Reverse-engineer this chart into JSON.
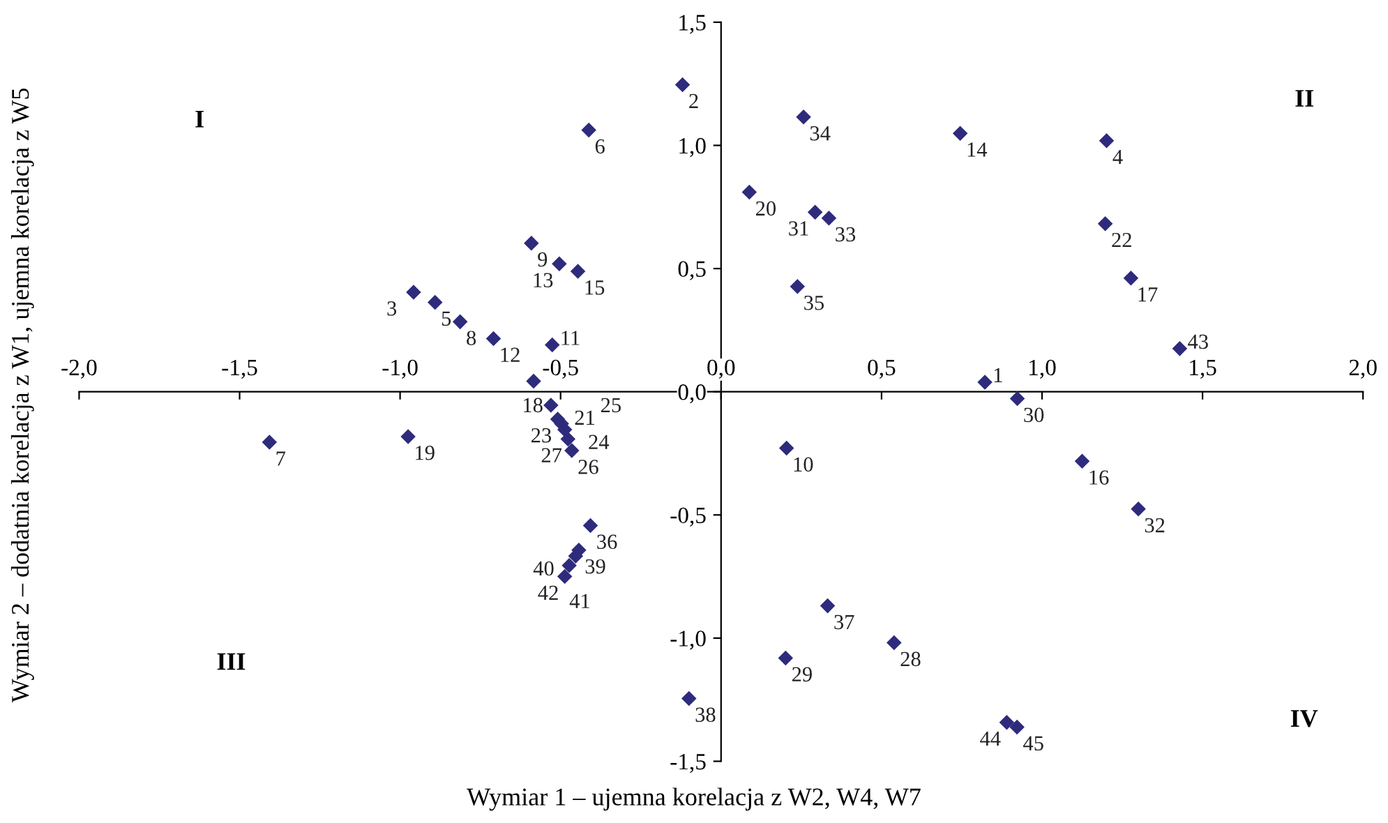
{
  "chart_data": {
    "type": "scatter",
    "xlabel": "Wymiar 1 – ujemna korelacja z W2, W4, W7",
    "ylabel": "Wymiar 2 – dodatnia korelacja z W1, ujemna korelacja z W5",
    "xlim": [
      -2.0,
      2.0
    ],
    "ylim": [
      -1.5,
      1.5
    ],
    "xticks": [
      {
        "value": -2.0,
        "label": "-2,0"
      },
      {
        "value": -1.5,
        "label": "-1,5"
      },
      {
        "value": -1.0,
        "label": "-1,0"
      },
      {
        "value": -0.5,
        "label": "-0,5"
      },
      {
        "value": 0.0,
        "label": "0,0"
      },
      {
        "value": 0.5,
        "label": "0,5"
      },
      {
        "value": 1.0,
        "label": "1,0"
      },
      {
        "value": 1.5,
        "label": "1,5"
      },
      {
        "value": 2.0,
        "label": "2,0"
      }
    ],
    "yticks": [
      {
        "value": -1.5,
        "label": "-1,5"
      },
      {
        "value": -1.0,
        "label": "-1,0"
      },
      {
        "value": -0.5,
        "label": "-0,5"
      },
      {
        "value": 0.0,
        "label": "0,0"
      },
      {
        "value": 0.5,
        "label": "0,5"
      },
      {
        "value": 1.0,
        "label": "1,0"
      },
      {
        "value": 1.5,
        "label": "1,5"
      }
    ],
    "grid": false,
    "legend": false,
    "marker": "diamond",
    "series": [
      {
        "color": "#2e2b7c",
        "x": [
          0.822,
          -0.12,
          -0.958,
          1.201,
          -0.891,
          -0.412,
          -1.407,
          -0.813,
          -0.591,
          0.204,
          -0.526,
          -0.709,
          -0.504,
          0.745,
          -0.446,
          1.125,
          1.277,
          -0.584,
          -0.975,
          0.088,
          -0.53,
          1.197,
          -0.509,
          -0.487,
          -0.497,
          -0.465,
          -0.477,
          0.539,
          0.201,
          0.923,
          0.293,
          1.3,
          0.336,
          0.257,
          0.238,
          -0.407,
          0.332,
          -0.1,
          -0.443,
          -0.453,
          -0.473,
          -0.487,
          1.429,
          0.89,
          0.922
        ],
        "values": [
          0.039,
          1.246,
          0.404,
          1.019,
          0.363,
          1.062,
          -0.205,
          0.284,
          0.603,
          -0.229,
          0.19,
          0.216,
          0.519,
          1.049,
          0.489,
          -0.282,
          0.461,
          0.043,
          -0.182,
          0.81,
          -0.055,
          0.682,
          -0.111,
          -0.154,
          -0.13,
          -0.239,
          -0.192,
          -1.019,
          -1.081,
          -0.028,
          0.729,
          -0.476,
          0.705,
          1.115,
          0.427,
          -0.543,
          -0.869,
          -1.245,
          -0.643,
          -0.667,
          -0.705,
          -0.75,
          0.175,
          -1.342,
          -1.361
        ]
      }
    ],
    "annotations": [
      "I",
      "II",
      "III",
      "IV",
      {
        "text": "1",
        "x": 0.822,
        "y": 0.039
      },
      {
        "text": "2",
        "x": -0.12,
        "y": 1.246
      },
      {
        "text": "3",
        "x": -0.958,
        "y": 0.404
      },
      {
        "text": "4",
        "x": 1.201,
        "y": 1.019
      },
      {
        "text": "5",
        "x": -0.891,
        "y": 0.363
      },
      {
        "text": "6",
        "x": -0.412,
        "y": 1.062
      },
      {
        "text": "7",
        "x": -1.407,
        "y": -0.205
      },
      {
        "text": "8",
        "x": -0.813,
        "y": 0.284
      },
      {
        "text": "9",
        "x": -0.591,
        "y": 0.603
      },
      {
        "text": "10",
        "x": 0.204,
        "y": -0.229
      },
      {
        "text": "11",
        "x": -0.526,
        "y": 0.19
      },
      {
        "text": "12",
        "x": -0.709,
        "y": 0.216
      },
      {
        "text": "13",
        "x": -0.504,
        "y": 0.519
      },
      {
        "text": "14",
        "x": 0.745,
        "y": 1.049
      },
      {
        "text": "15",
        "x": -0.446,
        "y": 0.489
      },
      {
        "text": "16",
        "x": 1.125,
        "y": -0.282
      },
      {
        "text": "17",
        "x": 1.277,
        "y": 0.461
      },
      {
        "text": "18",
        "x": -0.584,
        "y": 0.043
      },
      {
        "text": "19",
        "x": -0.975,
        "y": -0.182
      },
      {
        "text": "20",
        "x": 0.088,
        "y": 0.81
      },
      {
        "text": "21",
        "x": -0.53,
        "y": -0.055
      },
      {
        "text": "22",
        "x": 1.197,
        "y": 0.682
      },
      {
        "text": "23",
        "x": -0.509,
        "y": -0.111
      },
      {
        "text": "24",
        "x": -0.487,
        "y": -0.154
      },
      {
        "text": "25",
        "x": -0.497,
        "y": -0.13
      },
      {
        "text": "26",
        "x": -0.465,
        "y": -0.239
      },
      {
        "text": "27",
        "x": -0.477,
        "y": -0.192
      },
      {
        "text": "28",
        "x": 0.539,
        "y": -1.019
      },
      {
        "text": "29",
        "x": 0.201,
        "y": -1.081
      },
      {
        "text": "30",
        "x": 0.923,
        "y": -0.028
      },
      {
        "text": "31",
        "x": 0.293,
        "y": 0.729
      },
      {
        "text": "32",
        "x": 1.3,
        "y": -0.476
      },
      {
        "text": "33",
        "x": 0.336,
        "y": 0.705
      },
      {
        "text": "34",
        "x": 0.257,
        "y": 1.115
      },
      {
        "text": "35",
        "x": 0.238,
        "y": 0.427
      },
      {
        "text": "36",
        "x": -0.407,
        "y": -0.543
      },
      {
        "text": "37",
        "x": 0.332,
        "y": -0.869
      },
      {
        "text": "38",
        "x": -0.1,
        "y": -1.245
      },
      {
        "text": "39",
        "x": -0.443,
        "y": -0.643
      },
      {
        "text": "40",
        "x": -0.453,
        "y": -0.667
      },
      {
        "text": "41",
        "x": -0.473,
        "y": -0.705
      },
      {
        "text": "42",
        "x": -0.487,
        "y": -0.75
      },
      {
        "text": "43",
        "x": 1.429,
        "y": 0.175
      },
      {
        "text": "44",
        "x": 0.89,
        "y": -1.342
      },
      {
        "text": "45",
        "x": 0.922,
        "y": -1.361
      }
    ]
  }
}
